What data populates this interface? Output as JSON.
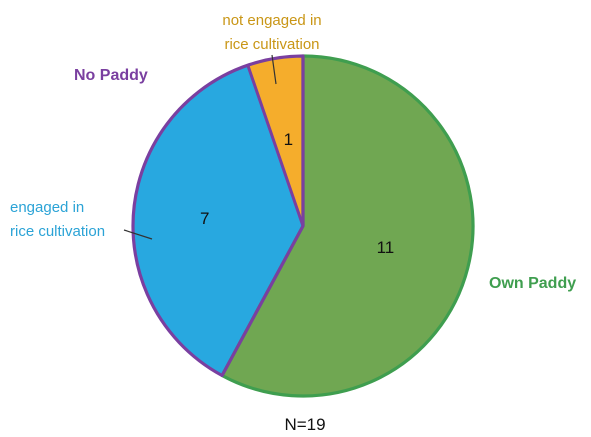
{
  "chart_data": {
    "type": "pie",
    "total_label": "N=19",
    "slices": [
      {
        "key": "own",
        "name": "Own Paddy",
        "value": 11,
        "color": "#70a752",
        "border": "#3fae5a"
      },
      {
        "key": "engaged",
        "name": "engaged in rice cultivation",
        "name_lines": [
          "engaged in",
          "rice cultivation"
        ],
        "value": 7,
        "color": "#28a8e0",
        "border": "#7a3fa0",
        "text_color": "#2ba3d6"
      },
      {
        "key": "not_engaged",
        "name": "not engaged in rice cultivation",
        "name_lines": [
          "not engaged in",
          "rice cultivation"
        ],
        "value": 1,
        "color": "#f5ad2c",
        "border": "#7a3fa0",
        "text_color": "#c99616"
      }
    ],
    "groups": [
      {
        "name": "Own Paddy",
        "color": "#3f9e4f",
        "slices": [
          "own"
        ]
      },
      {
        "name": "No Paddy",
        "color": "#7a3fa0",
        "slices": [
          "engaged",
          "not_engaged"
        ]
      }
    ]
  }
}
